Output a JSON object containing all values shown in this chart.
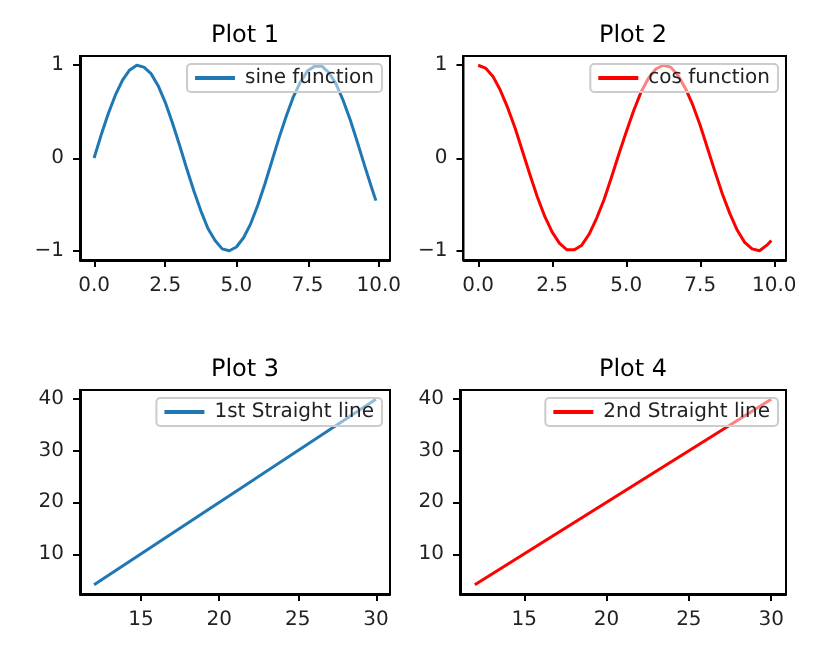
{
  "chart_data": [
    {
      "type": "line",
      "title": "Plot 1",
      "legend": "top right",
      "marker": "none",
      "xlim": [
        -0.495,
        10.395
      ],
      "ylim": [
        -1.1,
        1.1
      ],
      "xticks": [
        {
          "value": 0,
          "label": "0.0"
        },
        {
          "value": 2.5,
          "label": "2.5"
        },
        {
          "value": 5,
          "label": "5.0"
        },
        {
          "value": 7.5,
          "label": "7.5"
        },
        {
          "value": 10,
          "label": "10.0"
        }
      ],
      "yticks": [
        {
          "value": -1,
          "label": "−1"
        },
        0,
        1
      ],
      "x": [
        0,
        0.25,
        0.5,
        0.75,
        1,
        1.25,
        1.5,
        1.75,
        2,
        2.25,
        2.5,
        2.75,
        3,
        3.25,
        3.5,
        3.75,
        4,
        4.25,
        4.5,
        4.75,
        5,
        5.25,
        5.5,
        5.75,
        6,
        6.25,
        6.5,
        6.75,
        7,
        7.25,
        7.5,
        7.75,
        8,
        8.25,
        8.5,
        8.75,
        9,
        9.25,
        9.5,
        9.75,
        9.9
      ],
      "series": [
        {
          "name": "sine function",
          "color": "#1f77b4",
          "values": [
            0,
            0.25,
            0.48,
            0.68,
            0.84,
            0.95,
            1.0,
            0.98,
            0.91,
            0.78,
            0.6,
            0.38,
            0.14,
            -0.11,
            -0.35,
            -0.57,
            -0.76,
            -0.89,
            -0.98,
            -1.0,
            -0.96,
            -0.86,
            -0.71,
            -0.51,
            -0.28,
            -0.03,
            0.22,
            0.45,
            0.66,
            0.82,
            0.94,
            0.99,
            0.99,
            0.92,
            0.8,
            0.62,
            0.41,
            0.17,
            -0.08,
            -0.32,
            -0.46
          ]
        }
      ]
    },
    {
      "type": "line",
      "title": "Plot 2",
      "legend": "top right",
      "marker": "none",
      "xlim": [
        -0.495,
        10.395
      ],
      "ylim": [
        -1.1,
        1.1
      ],
      "xticks": [
        {
          "value": 0,
          "label": "0.0"
        },
        {
          "value": 2.5,
          "label": "2.5"
        },
        {
          "value": 5,
          "label": "5.0"
        },
        {
          "value": 7.5,
          "label": "7.5"
        },
        {
          "value": 10,
          "label": "10.0"
        }
      ],
      "yticks": [
        {
          "value": -1,
          "label": "−1"
        },
        0,
        1
      ],
      "x": [
        0,
        0.25,
        0.5,
        0.75,
        1,
        1.25,
        1.5,
        1.75,
        2,
        2.25,
        2.5,
        2.75,
        3,
        3.25,
        3.5,
        3.75,
        4,
        4.25,
        4.5,
        4.75,
        5,
        5.25,
        5.5,
        5.75,
        6,
        6.25,
        6.5,
        6.75,
        7,
        7.25,
        7.5,
        7.75,
        8,
        8.25,
        8.5,
        8.75,
        9,
        9.25,
        9.5,
        9.75,
        9.9
      ],
      "series": [
        {
          "name": "cos function",
          "color": "#ff0000",
          "values": [
            1.0,
            0.97,
            0.88,
            0.73,
            0.54,
            0.32,
            0.07,
            -0.18,
            -0.42,
            -0.63,
            -0.8,
            -0.92,
            -0.99,
            -0.99,
            -0.94,
            -0.82,
            -0.65,
            -0.45,
            -0.21,
            0.04,
            0.28,
            0.51,
            0.71,
            0.86,
            0.96,
            1.0,
            0.98,
            0.89,
            0.75,
            0.57,
            0.35,
            0.1,
            -0.15,
            -0.39,
            -0.6,
            -0.78,
            -0.91,
            -0.98,
            -1.0,
            -0.94,
            -0.89
          ]
        }
      ]
    },
    {
      "type": "line",
      "title": "Plot 3",
      "legend": "top right",
      "marker": "none",
      "xlim": [
        11.1,
        30.9
      ],
      "ylim": [
        2.2,
        41.8
      ],
      "xticks": [
        15,
        20,
        25,
        30
      ],
      "yticks": [
        10,
        20,
        30,
        40
      ],
      "x": [
        12,
        30
      ],
      "series": [
        {
          "name": "1st Straight line",
          "color": "#1f77b4",
          "values": [
            4,
            40
          ]
        }
      ]
    },
    {
      "type": "line",
      "title": "Plot 4",
      "legend": "top right",
      "marker": "none",
      "xlim": [
        11.1,
        30.9
      ],
      "ylim": [
        2.2,
        41.8
      ],
      "xticks": [
        15,
        20,
        25,
        30
      ],
      "yticks": [
        10,
        20,
        30,
        40
      ],
      "x": [
        12,
        30
      ],
      "series": [
        {
          "name": "2nd Straight line",
          "color": "#ff0000",
          "values": [
            4,
            40
          ]
        }
      ]
    }
  ]
}
